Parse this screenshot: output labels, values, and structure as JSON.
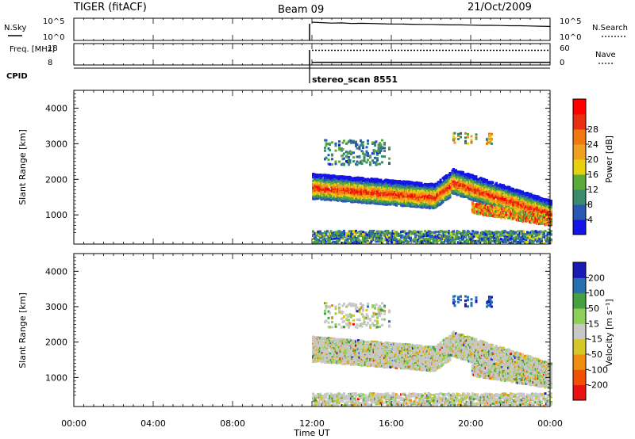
{
  "header": {
    "station": "TIGER (fitACF)",
    "beam": "Beam 09",
    "date": "21/Oct/2009"
  },
  "chart_data": [
    {
      "type": "line",
      "name": "noise-panel",
      "ylabel_left": "N.Sky",
      "ylabel_right": "N.Search",
      "left_ticks": [
        "10^5",
        "10^0"
      ],
      "right_ticks": [
        "10^5",
        "10^0"
      ],
      "x_range_hours": [
        0,
        24
      ],
      "data_start_hour": 12,
      "series": [
        {
          "values_log10": [
            4.1,
            4.0,
            3.9,
            3.95,
            3.8,
            3.85,
            3.8,
            3.75,
            3.7,
            3.7,
            3.65,
            3.6,
            3.6,
            3.55,
            3.5,
            3.5,
            3.45,
            3.4,
            3.4,
            3.35,
            3.3,
            3.3,
            3.25,
            3.2,
            3.15
          ]
        }
      ]
    },
    {
      "type": "line",
      "name": "frequency-panel",
      "ylabel_left": "Freq. [MHz]",
      "ylabel_right": "Nave",
      "left_ticks": [
        "18",
        "8"
      ],
      "right_ticks": [
        "60",
        "0"
      ],
      "x_range_hours": [
        0,
        24
      ],
      "data_start_hour": 12,
      "freq_mhz": 10,
      "nave": 41
    },
    {
      "type": "table",
      "name": "cpid-panel",
      "label": "CPID",
      "start_hour": 12,
      "program": "stereo_scan 8551"
    },
    {
      "type": "heatmap",
      "name": "power-panel",
      "ylabel": "Slant Range [km]",
      "y_ticks": [
        1000,
        2000,
        3000,
        4000
      ],
      "ylim": [
        180,
        4500
      ],
      "colorbar_label": "Power [dB]",
      "colorbar_ticks": [
        4,
        8,
        12,
        16,
        20,
        24,
        28
      ],
      "colorbar_range": [
        0,
        32
      ],
      "colorbar_colors": [
        "#1414e6",
        "#2858b4",
        "#3a8a6c",
        "#5aaa3c",
        "#e6d010",
        "#f0a020",
        "#f07810",
        "#e83010",
        "#ff0000"
      ]
    },
    {
      "type": "heatmap",
      "name": "velocity-panel",
      "ylabel": "Slant Range [km]",
      "y_ticks": [
        1000,
        2000,
        3000,
        4000
      ],
      "ylim": [
        180,
        4500
      ],
      "colorbar_label": "Velocity [m s⁻¹]",
      "colorbar_ticks": [
        "200",
        "100",
        "50",
        "15",
        "-15",
        "-50",
        "-100",
        "-200"
      ],
      "colorbar_colors": [
        "#1a1ab4",
        "#2870b0",
        "#46a040",
        "#8cd05a",
        "#c8c8c8",
        "#d4c828",
        "#f08c10",
        "#f05000",
        "#e81010"
      ],
      "xlabel": "Time UT",
      "x_ticks": [
        "00:00",
        "04:00",
        "08:00",
        "12:00",
        "16:00",
        "20:00",
        "00:00"
      ]
    }
  ]
}
